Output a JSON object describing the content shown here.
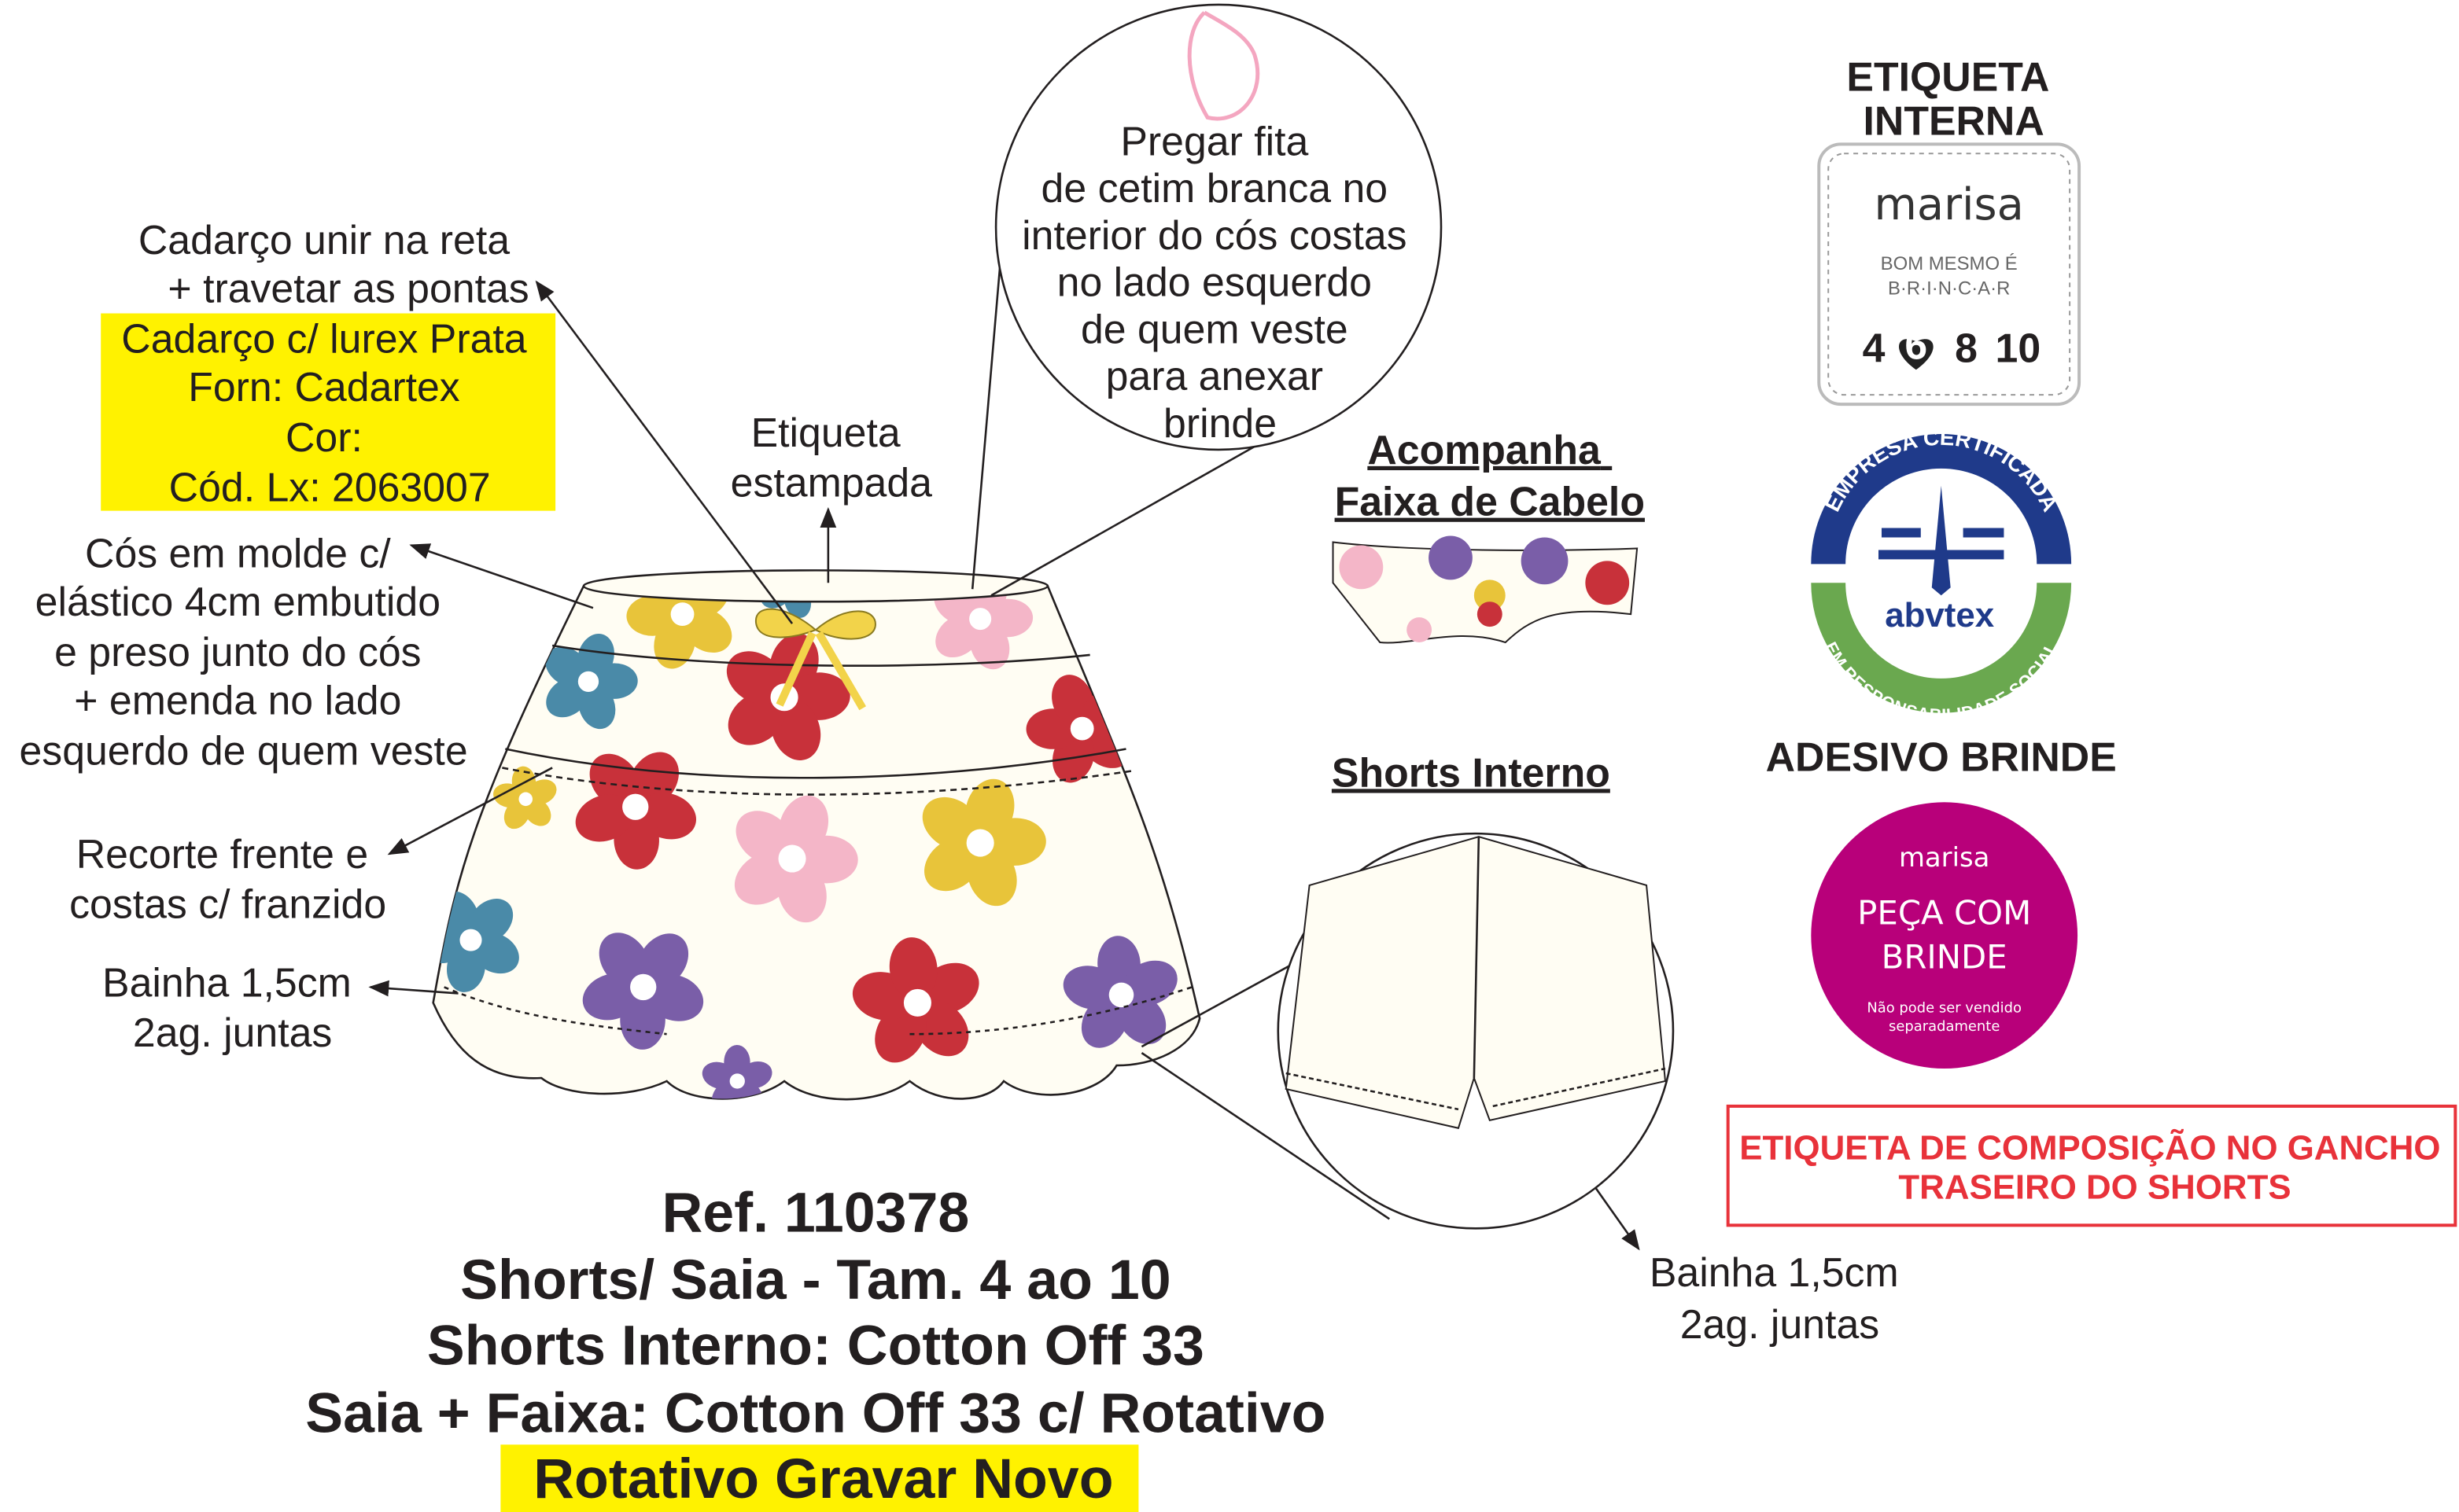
{
  "labels": {
    "cadarco": [
      "Cadarço unir na reta",
      "+ travetar as pontas"
    ],
    "cadarco_spec": [
      "Cadarço c/ lurex Prata",
      "Forn: Cadartex",
      "Cor:",
      "Cód. Lx: 2063007"
    ],
    "cos": [
      "Cós em molde c/",
      "elástico 4cm embutido",
      "e preso junto do cós",
      "+ emenda no lado",
      "esquerdo de quem veste"
    ],
    "recorte": [
      "Recorte frente e",
      "costas c/ franzido"
    ],
    "bainha_saia": [
      "Bainha 1,5cm",
      "2ag. juntas"
    ],
    "etiqueta_estampada": [
      "Etiqueta",
      "estampada"
    ],
    "fita": [
      "Pregar fita",
      "de cetim branca no",
      "interior do cós costas",
      "no lado esquerdo",
      "de quem veste",
      "para anexar",
      "brinde"
    ],
    "acompanha": [
      "Acompanha",
      "Faixa de Cabelo"
    ],
    "shorts_interno": "Shorts Interno",
    "bainha_shorts": [
      "Bainha 1,5cm",
      "2ag. juntas"
    ]
  },
  "right_panel": {
    "etiqueta_interna_title": [
      "ETIQUETA",
      "INTERNA"
    ],
    "tag": {
      "brand": "marisa",
      "slogan": [
        "BOM MESMO É",
        "B·R·I·N·C·A·R"
      ],
      "sizes": [
        "4",
        "6",
        "8",
        "10"
      ],
      "selected_size": "6"
    },
    "abvtex": {
      "top": "EMPRESA CERTIFICADA",
      "name": "abvtex",
      "bottom": "EM RESPONSABILIDADE SOCIAL"
    },
    "adesivo_title": "ADESIVO BRINDE",
    "sticker": {
      "brand": "marisa",
      "line1": "PEÇA COM",
      "line2": "BRINDE",
      "note1": "Não pode ser vendido",
      "note2": "separadamente"
    },
    "composicao_note": [
      "ETIQUETA DE COMPOSIÇÃO NO GANCHO",
      "TRASEIRO DO SHORTS"
    ]
  },
  "summary": [
    "Ref. 110378",
    "Shorts/ Saia - Tam. 4 ao 10",
    "Shorts Interno: Cotton Off 33",
    "Saia + Faixa: Cotton Off 33 c/ Rotativo",
    "Rotativo Gravar Novo"
  ],
  "colors": {
    "highlight": "#fff200",
    "magenta": "#b8007a",
    "alert": "#e8323a",
    "abvtex_blue": "#1f3a8a",
    "abvtex_green": "#6aa84f",
    "fabric": "#fffdf3",
    "flowers": [
      "#e8c43a",
      "#c8313a",
      "#f4b6c8",
      "#4a8aa8",
      "#7a5ea8"
    ]
  }
}
